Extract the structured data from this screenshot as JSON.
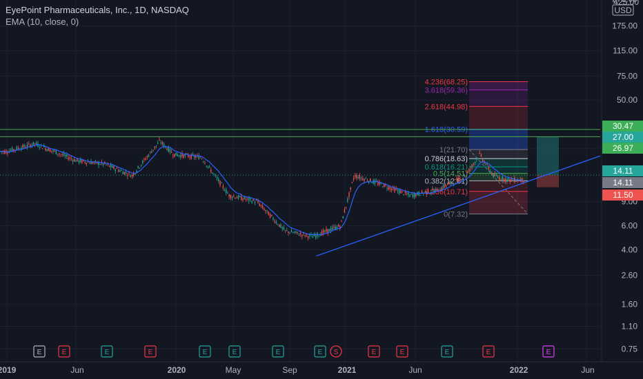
{
  "header": {
    "title": "EyePoint Pharmaceuticals, Inc., 1D, NASDAQ",
    "indicator": "EMA (10, close, 0)"
  },
  "price_axis": {
    "currency": "USD",
    "top_partial": "425.00",
    "ticks": [
      "275.00",
      "175.00",
      "115.00",
      "75.00",
      "50.00",
      "22.00",
      "9.00",
      "6.00",
      "4.00",
      "2.60",
      "1.60",
      "1.10",
      "0.75"
    ]
  },
  "time_axis": {
    "labels": [
      "2019",
      "Jun",
      "2020",
      "May",
      "Sep",
      "2021",
      "Jun",
      "2022",
      "Jun"
    ]
  },
  "price_tags": [
    {
      "label": "30.47",
      "bg": "#3cae57",
      "fg": "#ffffff"
    },
    {
      "label": "27.00",
      "bg": "#26a69a",
      "fg": "#ffffff"
    },
    {
      "label": "26.97",
      "bg": "#3cae57",
      "fg": "#ffffff"
    },
    {
      "label": "14.11",
      "bg": "#26a69a",
      "fg": "#ffffff"
    },
    {
      "label": "14.11",
      "bg": "#787b86",
      "fg": "#ffffff"
    },
    {
      "label": "11.50",
      "bg": "#ef5350",
      "fg": "#ffffff"
    }
  ],
  "fib_levels": [
    {
      "label": "4.236(68.25)",
      "color": "#f23645"
    },
    {
      "label": "3.618(59.36)",
      "color": "#9c27b0"
    },
    {
      "label": "2.618(44.98)",
      "color": "#f23645"
    },
    {
      "label": "1.618(30.59)",
      "color": "#2962ff"
    },
    {
      "label": "1(21.70)",
      "color": "#787b86"
    },
    {
      "label": "0.786(18.63)",
      "color": "#d1d4dc"
    },
    {
      "label": "0.618(16.21)",
      "color": "#089981"
    },
    {
      "label": "0.5(14.51)",
      "color": "#4caf50"
    },
    {
      "label": "0.382(12.81)",
      "color": "#b2b5be"
    },
    {
      "label": "0.236(10.71)",
      "color": "#f23645"
    },
    {
      "label": "0(7.32)",
      "color": "#787b86"
    }
  ],
  "event_markers": [
    "E",
    "E",
    "E",
    "E",
    "E",
    "E",
    "E",
    "E",
    "S",
    "E",
    "E",
    "E",
    "E",
    "E"
  ],
  "colors": {
    "background": "#131722",
    "up": "#26a69a",
    "down": "#ef5350",
    "ema": "#2962ff",
    "trendline": "#2962ff",
    "hline": "#4caf50",
    "dotted": "#26a69a"
  },
  "chart_data": {
    "type": "line",
    "title": "EyePoint Pharmaceuticals, Inc., 1D, NASDAQ",
    "y_scale": "log",
    "ylim": [
      0.6,
      430
    ],
    "x": [
      "2019-01",
      "2019-03",
      "2019-06",
      "2019-08",
      "2019-10",
      "2019-12",
      "2020-01",
      "2020-03",
      "2020-05",
      "2020-07",
      "2020-09",
      "2020-11",
      "2021-01",
      "2021-02",
      "2021-04",
      "2021-06",
      "2021-08",
      "2021-10",
      "2021-11",
      "2021-12",
      "2022-01"
    ],
    "series": [
      {
        "values": [
          21,
          24,
          18,
          17,
          14,
          25,
          20,
          19,
          10,
          9,
          5.5,
          5,
          6,
          14,
          12,
          10,
          11,
          14,
          20,
          14,
          13
        ]
      }
    ],
    "horizontal_lines": [
      26.97,
      30.47,
      14.11
    ],
    "fib_extension": [
      7.32,
      10.71,
      12.81,
      14.51,
      16.21,
      18.63,
      21.7,
      30.59,
      44.98,
      59.36,
      68.25
    ],
    "position": {
      "entry": 14.11,
      "target": 27.0,
      "stop": 11.5
    },
    "trendline": {
      "from": [
        "2020-11",
        3.6
      ],
      "to": [
        "2022-06",
        19.5
      ]
    }
  }
}
